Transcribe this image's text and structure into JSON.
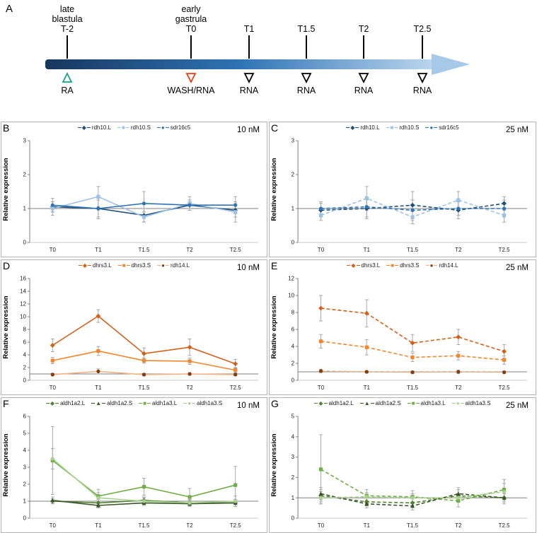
{
  "timeline": {
    "panel_label": "A",
    "stages": [
      {
        "line1": "late",
        "line2": "blastula"
      },
      {
        "line1": "early",
        "line2": "gastrula"
      }
    ],
    "ticks": [
      "T-2",
      "T0",
      "T1",
      "T1.5",
      "T2",
      "T2.5"
    ],
    "markers": [
      {
        "label": "RA",
        "color": "#1A9E8E",
        "shape": "up"
      },
      {
        "label": "WASH/RNA",
        "color": "#F03C14",
        "shape": "down"
      },
      {
        "label": "RNA",
        "color": "#000000",
        "shape": "down"
      },
      {
        "label": "RNA",
        "color": "#000000",
        "shape": "down"
      },
      {
        "label": "RNA",
        "color": "#000000",
        "shape": "down"
      },
      {
        "label": "RNA",
        "color": "#000000",
        "shape": "down"
      }
    ],
    "arrow_colors": {
      "start": "#17375E",
      "mid": "#2E74B5",
      "end": "#BDD7EE",
      "head": "#A6C9E8"
    }
  },
  "chart_data": [
    {
      "type": "line",
      "panel": "B",
      "dose": "10 nM",
      "ylabel": "Relative expression",
      "categories": [
        "T0",
        "T1",
        "T1.5",
        "T2",
        "T2.5"
      ],
      "ylim": [
        0,
        3
      ],
      "yticks": [
        0,
        1,
        2,
        3
      ],
      "ref_line": 1,
      "dashed": false,
      "legend_position": "top",
      "grid": false,
      "series": [
        {
          "name": "rdh10.L",
          "color": "#1F4E79",
          "marker": "diamond",
          "values": [
            1.05,
            1.0,
            0.8,
            1.1,
            0.95
          ],
          "errors": [
            0.15,
            0.25,
            0.2,
            0.15,
            0.2
          ]
        },
        {
          "name": "rdh10.S",
          "color": "#9CC2E5",
          "marker": "square",
          "values": [
            1.0,
            1.35,
            0.75,
            1.15,
            0.9
          ],
          "errors": [
            0.2,
            0.3,
            0.15,
            0.2,
            0.3
          ]
        },
        {
          "name": "sdr16c5",
          "color": "#2E74B5",
          "marker": "circle",
          "values": [
            1.1,
            1.0,
            1.15,
            1.1,
            1.1
          ],
          "errors": [
            0.2,
            0.3,
            0.35,
            0.1,
            0.25
          ]
        }
      ]
    },
    {
      "type": "line",
      "panel": "C",
      "dose": "25 nM",
      "ylabel": "Relative expression",
      "categories": [
        "T0",
        "T1",
        "T1.5",
        "T2",
        "T2.5"
      ],
      "ylim": [
        0,
        3
      ],
      "yticks": [
        0,
        1,
        2,
        3
      ],
      "ref_line": 1,
      "dashed": true,
      "legend_position": "top",
      "grid": false,
      "series": [
        {
          "name": "rdh10.L",
          "color": "#1F4E79",
          "marker": "diamond",
          "values": [
            0.95,
            1.0,
            1.1,
            0.95,
            1.15
          ],
          "errors": [
            0.2,
            0.3,
            0.4,
            0.25,
            0.2
          ]
        },
        {
          "name": "rdh10.S",
          "color": "#9CC2E5",
          "marker": "square",
          "values": [
            0.8,
            1.3,
            0.75,
            1.25,
            0.8
          ],
          "errors": [
            0.15,
            0.35,
            0.2,
            0.25,
            0.2
          ]
        },
        {
          "name": "sdr16c5",
          "color": "#2E74B5",
          "marker": "circle",
          "values": [
            1.0,
            1.05,
            0.95,
            1.0,
            1.0
          ],
          "errors": [
            0.2,
            0.3,
            0.3,
            0.2,
            0.25
          ]
        }
      ]
    },
    {
      "type": "line",
      "panel": "D",
      "dose": "10 nM",
      "ylabel": "Relative expression",
      "categories": [
        "T0",
        "T1",
        "T1.5",
        "T2",
        "T2.5"
      ],
      "ylim": [
        0,
        16
      ],
      "yticks": [
        0,
        2,
        4,
        6,
        8,
        10,
        12,
        14,
        16
      ],
      "ref_line": 1,
      "dashed": false,
      "legend_position": "top",
      "grid": false,
      "series": [
        {
          "name": "dhrs3.L",
          "color": "#D2601A",
          "marker": "diamond",
          "values": [
            5.5,
            10.1,
            4.2,
            5.2,
            2.6
          ],
          "errors": [
            1.0,
            1.0,
            0.9,
            1.3,
            0.7
          ]
        },
        {
          "name": "dhrs3.S",
          "color": "#F2862C",
          "marker": "square",
          "values": [
            3.1,
            4.6,
            3.1,
            3.0,
            1.6
          ],
          "errors": [
            0.5,
            0.7,
            0.4,
            0.5,
            0.4
          ]
        },
        {
          "name": "rdh14.L",
          "color": "#843C0C",
          "line_color": "#F4B183",
          "marker": "circle",
          "values": [
            0.9,
            1.4,
            0.9,
            1.0,
            0.9
          ],
          "errors": [
            0.2,
            0.4,
            0.2,
            0.2,
            0.2
          ]
        }
      ]
    },
    {
      "type": "line",
      "panel": "E",
      "dose": "25 nM",
      "ylabel": "Relative expression",
      "categories": [
        "T0",
        "T1",
        "T1.5",
        "T2",
        "T2.5"
      ],
      "ylim": [
        0,
        12
      ],
      "yticks": [
        0,
        2,
        4,
        6,
        8,
        10,
        12
      ],
      "ref_line": 1,
      "dashed": true,
      "legend_position": "top",
      "grid": false,
      "series": [
        {
          "name": "dhrs3.L",
          "color": "#D2601A",
          "marker": "diamond",
          "values": [
            8.5,
            7.9,
            4.4,
            5.1,
            3.4
          ],
          "errors": [
            1.5,
            1.6,
            1.0,
            0.9,
            0.8
          ]
        },
        {
          "name": "dhrs3.S",
          "color": "#F2862C",
          "marker": "square",
          "values": [
            4.6,
            3.9,
            2.7,
            2.9,
            2.4
          ],
          "errors": [
            0.8,
            0.9,
            0.5,
            0.5,
            0.5
          ]
        },
        {
          "name": "rdh14.L",
          "color": "#843C0C",
          "line_color": "#F4B183",
          "marker": "circle",
          "values": [
            1.1,
            1.0,
            0.95,
            1.0,
            0.95
          ],
          "errors": [
            0.2,
            0.15,
            0.15,
            0.2,
            0.15
          ]
        }
      ]
    },
    {
      "type": "line",
      "panel": "F",
      "dose": "10 nM",
      "ylabel": "Relative expression",
      "categories": [
        "T0",
        "T1",
        "T1.5",
        "T2",
        "T2.5"
      ],
      "ylim": [
        0,
        6
      ],
      "yticks": [
        0,
        1,
        2,
        3,
        4,
        5,
        6
      ],
      "ref_line": 1,
      "dashed": false,
      "legend_position": "top",
      "grid": false,
      "series": [
        {
          "name": "aldh1a2.L",
          "color": "#538135",
          "marker": "diamond",
          "values": [
            1.0,
            0.9,
            1.05,
            0.9,
            0.9
          ],
          "errors": [
            0.15,
            0.2,
            0.2,
            0.15,
            0.2
          ]
        },
        {
          "name": "aldh1a2.S",
          "color": "#375623",
          "marker": "triangle",
          "values": [
            1.05,
            0.75,
            0.9,
            0.85,
            0.9
          ],
          "errors": [
            0.2,
            0.15,
            0.15,
            0.15,
            0.2
          ]
        },
        {
          "name": "aldh1a3.L",
          "color": "#70AD47",
          "marker": "square",
          "values": [
            3.4,
            1.3,
            1.85,
            1.25,
            1.95
          ],
          "errors": [
            2.0,
            0.4,
            0.5,
            0.5,
            1.1
          ]
        },
        {
          "name": "aldh1a3.S",
          "color": "#A9D18E",
          "marker": "circle",
          "values": [
            3.5,
            1.2,
            1.0,
            0.9,
            1.0
          ],
          "errors": [
            0.6,
            0.3,
            0.2,
            0.2,
            0.3
          ]
        }
      ]
    },
    {
      "type": "line",
      "panel": "G",
      "dose": "25 nM",
      "ylabel": "Relative expression",
      "categories": [
        "T0",
        "T1",
        "T1.5",
        "T2",
        "T2.5"
      ],
      "ylim": [
        0,
        5
      ],
      "yticks": [
        0,
        1,
        2,
        3,
        4,
        5
      ],
      "ref_line": 1,
      "dashed": true,
      "legend_position": "top",
      "grid": false,
      "series": [
        {
          "name": "aldh1a2.L",
          "color": "#538135",
          "marker": "diamond",
          "values": [
            1.1,
            0.8,
            0.75,
            1.1,
            1.0
          ],
          "errors": [
            0.3,
            0.2,
            0.2,
            0.3,
            0.2
          ]
        },
        {
          "name": "aldh1a2.S",
          "color": "#375623",
          "marker": "triangle",
          "values": [
            1.2,
            0.7,
            0.6,
            1.2,
            1.0
          ],
          "errors": [
            0.3,
            0.2,
            0.2,
            0.3,
            0.3
          ]
        },
        {
          "name": "aldh1a3.L",
          "color": "#70AD47",
          "marker": "square",
          "values": [
            2.4,
            1.1,
            1.05,
            0.85,
            1.4
          ],
          "errors": [
            1.7,
            0.3,
            0.3,
            0.3,
            0.5
          ]
        },
        {
          "name": "aldh1a3.S",
          "color": "#A9D18E",
          "marker": "circle",
          "values": [
            1.0,
            1.05,
            1.0,
            1.0,
            1.3
          ],
          "errors": [
            0.3,
            0.2,
            0.2,
            0.2,
            0.4
          ]
        }
      ]
    }
  ]
}
